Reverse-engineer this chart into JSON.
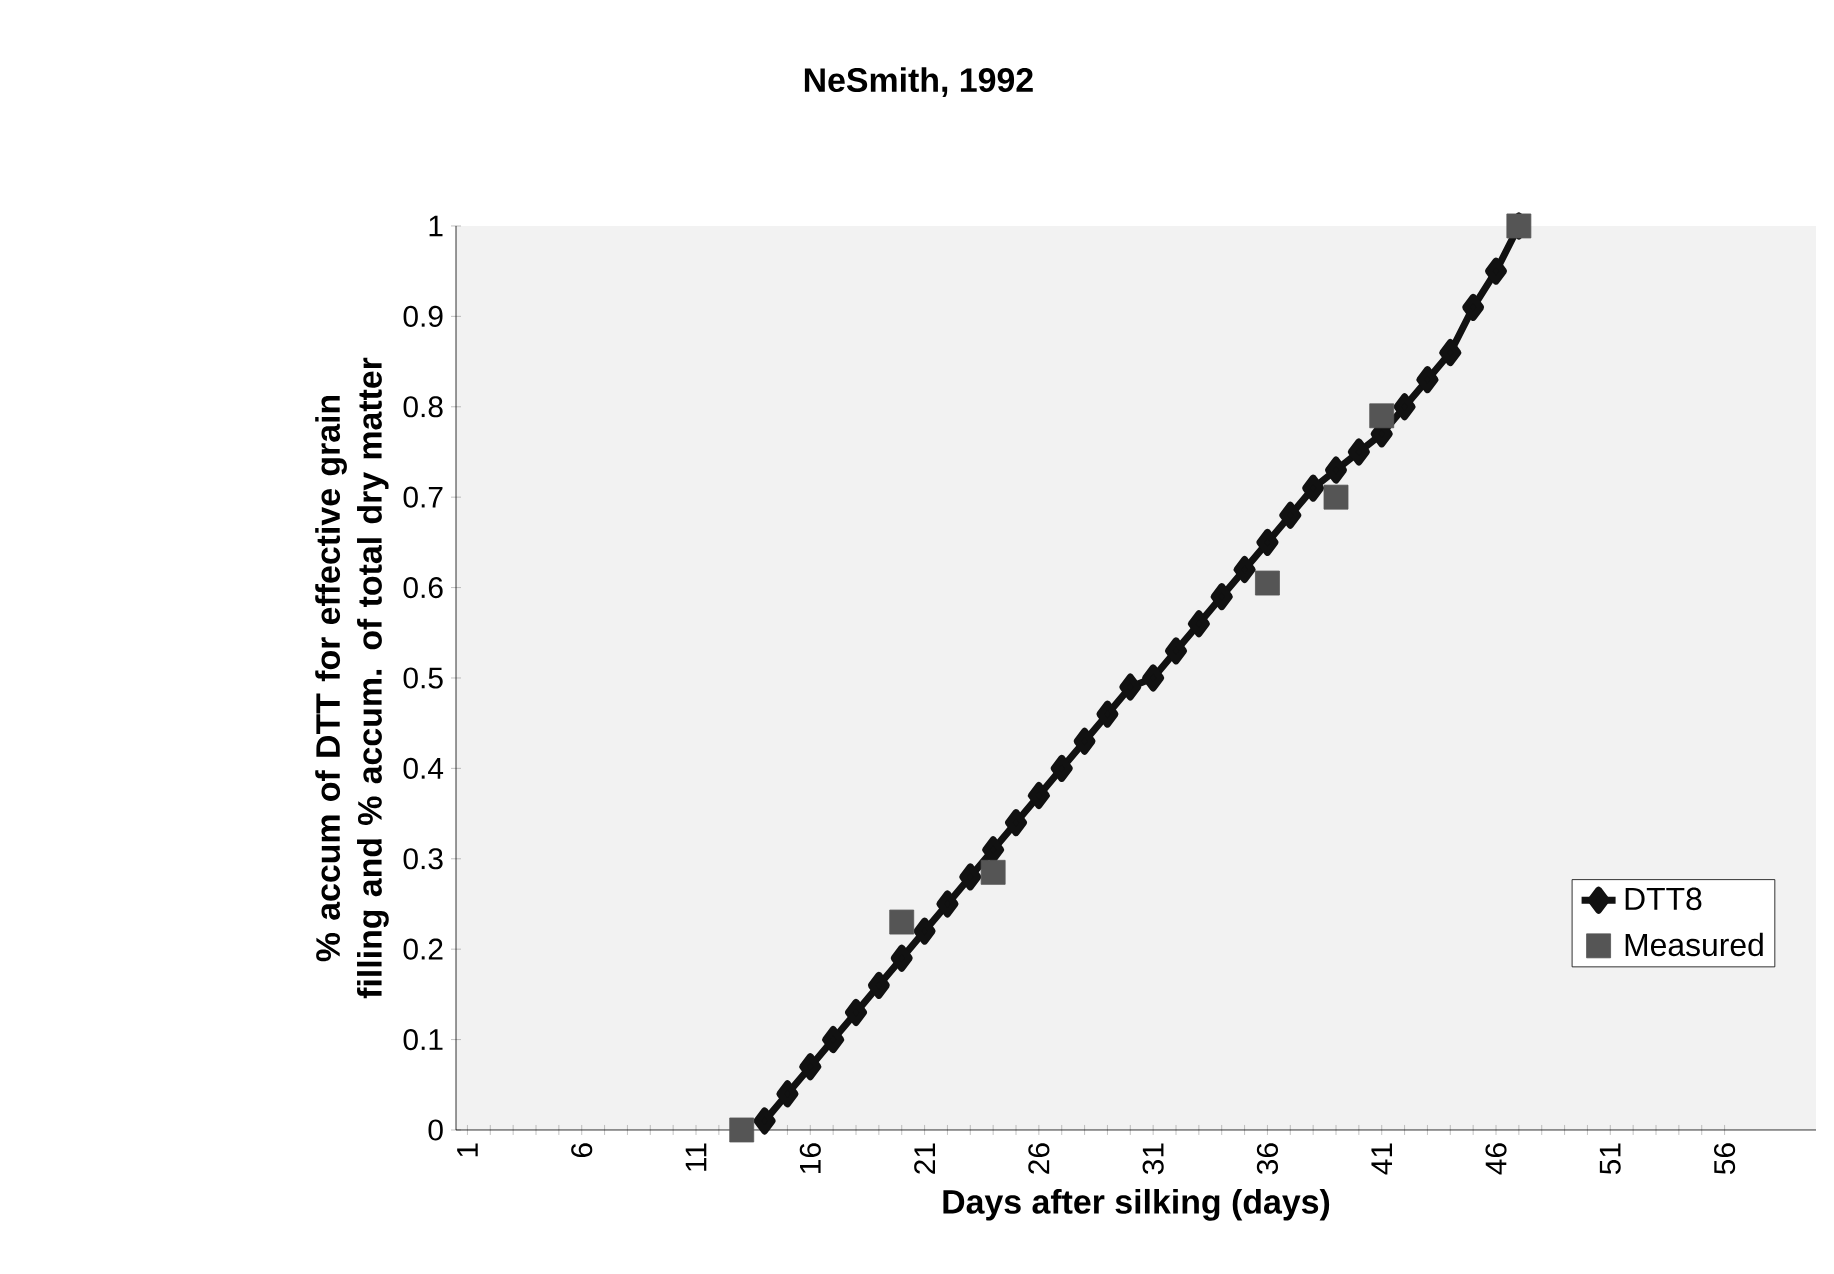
{
  "chart_data": {
    "type": "line",
    "title": "NeSmith, 1992",
    "xlabel": "Days after silking (days)",
    "ylabel": "% accum of DTT  for effective grain filling and % accum. of total dry matter",
    "xlim": [
      0.5,
      60
    ],
    "xticks": [
      1,
      6,
      11,
      16,
      21,
      26,
      31,
      36,
      41,
      46,
      51,
      56
    ],
    "ylim": [
      0,
      1
    ],
    "yticks": [
      0,
      0.1,
      0.2,
      0.3,
      0.4,
      0.5,
      0.6,
      0.7,
      0.8,
      0.9,
      1
    ],
    "grid": false,
    "legend": "bottom right",
    "series": [
      {
        "name": "DTT8",
        "color": "#111111",
        "marker": "diamond",
        "x": [
          14,
          15,
          16,
          17,
          18,
          19,
          20,
          21,
          22,
          23,
          24,
          25,
          26,
          27,
          28,
          29,
          30,
          31,
          32,
          33,
          34,
          35,
          36,
          37,
          38,
          39,
          40,
          41,
          42,
          43,
          44,
          45,
          46,
          47
        ],
        "values": [
          0.01,
          0.04,
          0.07,
          0.1,
          0.13,
          0.16,
          0.19,
          0.22,
          0.25,
          0.28,
          0.31,
          0.34,
          0.37,
          0.4,
          0.43,
          0.46,
          0.49,
          0.5,
          0.53,
          0.56,
          0.59,
          0.62,
          0.65,
          0.68,
          0.71,
          0.73,
          0.75,
          0.77,
          0.8,
          0.83,
          0.86,
          0.91,
          0.95,
          1.0
        ]
      },
      {
        "name": "Measured",
        "type": "scatter",
        "color": "#555555",
        "marker": "square",
        "x": [
          13,
          20,
          24,
          36,
          39,
          41,
          47
        ],
        "values": [
          0,
          0.23,
          0.285,
          0.605,
          0.7,
          0.79,
          1.0
        ]
      }
    ]
  }
}
